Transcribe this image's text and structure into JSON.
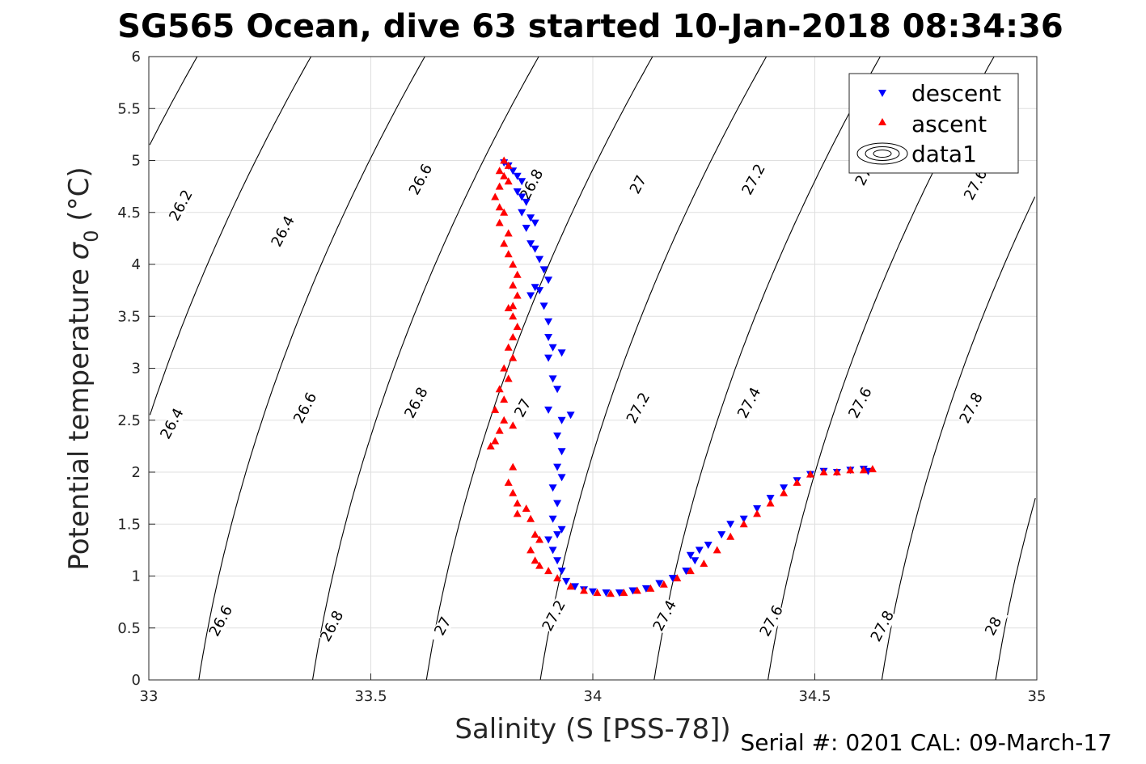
{
  "page": {
    "title": "SG565 Ocean, dive 63 started 10-Jan-2018 08:34:36",
    "footer": "Serial #: 0201  CAL: 09-March-17"
  },
  "colors": {
    "descent": "#0000ff",
    "ascent": "#ff0000",
    "contour": "#000000",
    "grid": "#dfdfdf"
  },
  "chart_data": {
    "type": "scatter",
    "xlabel": "Salinity (S [PSS-78])",
    "ylabel": "Potential temperature σ 0 (°C)",
    "ylabel_main": "Potential temperature ",
    "ylabel_sigma": "σ",
    "ylabel_sub": "0",
    "ylabel_unit": " (°C)",
    "xlim": [
      33,
      35
    ],
    "ylim": [
      0,
      6
    ],
    "xticks": [
      "33",
      "33.5",
      "34",
      "34.5",
      "35"
    ],
    "yticks": [
      "0",
      "0.5",
      "1",
      "1.5",
      "2",
      "2.5",
      "3",
      "3.5",
      "4",
      "4.5",
      "5",
      "5.5",
      "6"
    ],
    "grid": true,
    "legend": {
      "placement": "top-right",
      "entries": [
        "descent",
        "ascent",
        "data1"
      ]
    },
    "contours": {
      "levels": [
        26.2,
        26.4,
        26.6,
        26.8,
        27.0,
        27.2,
        27.4,
        27.6,
        27.8,
        28.0
      ],
      "labels": [
        {
          "text": "26.2",
          "s": 33.08,
          "t": 4.55
        },
        {
          "text": "26.4",
          "s": 33.31,
          "t": 4.3
        },
        {
          "text": "26.6",
          "s": 33.62,
          "t": 4.8
        },
        {
          "text": "26.8",
          "s": 33.87,
          "t": 4.75
        },
        {
          "text": "27",
          "s": 34.11,
          "t": 4.75
        },
        {
          "text": "27.2",
          "s": 34.37,
          "t": 4.8
        },
        {
          "text": "27.",
          "s": 34.62,
          "t": 4.85
        },
        {
          "text": "27.6",
          "s": 34.87,
          "t": 4.75
        },
        {
          "text": "26.4",
          "s": 33.06,
          "t": 2.45
        },
        {
          "text": "26.6",
          "s": 33.36,
          "t": 2.6
        },
        {
          "text": "26.8",
          "s": 33.61,
          "t": 2.65
        },
        {
          "text": "27",
          "s": 33.85,
          "t": 2.6
        },
        {
          "text": "27.2",
          "s": 34.11,
          "t": 2.6
        },
        {
          "text": "27.4",
          "s": 34.36,
          "t": 2.65
        },
        {
          "text": "27.6",
          "s": 34.61,
          "t": 2.65
        },
        {
          "text": "27.8",
          "s": 34.86,
          "t": 2.6
        },
        {
          "text": "26.6",
          "s": 33.17,
          "t": 0.55
        },
        {
          "text": "26.8",
          "s": 33.42,
          "t": 0.5
        },
        {
          "text": "27",
          "s": 33.67,
          "t": 0.5
        },
        {
          "text": "27.2",
          "s": 33.92,
          "t": 0.6
        },
        {
          "text": "27.4",
          "s": 34.17,
          "t": 0.6
        },
        {
          "text": "27.6",
          "s": 34.41,
          "t": 0.55
        },
        {
          "text": "27.8",
          "s": 34.66,
          "t": 0.5
        },
        {
          "text": "28",
          "s": 34.91,
          "t": 0.5
        }
      ]
    },
    "series": [
      {
        "name": "descent",
        "marker": "triangle-down",
        "points": [
          [
            33.8,
            4.98
          ],
          [
            33.81,
            4.95
          ],
          [
            33.82,
            4.9
          ],
          [
            33.83,
            4.85
          ],
          [
            33.84,
            4.8
          ],
          [
            33.83,
            4.7
          ],
          [
            33.84,
            4.65
          ],
          [
            33.85,
            4.6
          ],
          [
            33.84,
            4.5
          ],
          [
            33.86,
            4.45
          ],
          [
            33.87,
            4.4
          ],
          [
            33.85,
            4.35
          ],
          [
            33.86,
            4.2
          ],
          [
            33.87,
            4.15
          ],
          [
            33.88,
            4.05
          ],
          [
            33.89,
            3.95
          ],
          [
            33.9,
            3.85
          ],
          [
            33.87,
            3.78
          ],
          [
            33.88,
            3.75
          ],
          [
            33.86,
            3.7
          ],
          [
            33.89,
            3.6
          ],
          [
            33.9,
            3.45
          ],
          [
            33.9,
            3.3
          ],
          [
            33.91,
            3.2
          ],
          [
            33.9,
            3.1
          ],
          [
            33.93,
            3.15
          ],
          [
            33.91,
            2.9
          ],
          [
            33.92,
            2.8
          ],
          [
            33.9,
            2.6
          ],
          [
            33.93,
            2.5
          ],
          [
            33.95,
            2.55
          ],
          [
            33.92,
            2.35
          ],
          [
            33.93,
            2.2
          ],
          [
            33.92,
            2.05
          ],
          [
            33.93,
            1.95
          ],
          [
            33.91,
            1.85
          ],
          [
            33.92,
            1.7
          ],
          [
            33.91,
            1.55
          ],
          [
            33.93,
            1.45
          ],
          [
            33.92,
            1.4
          ],
          [
            33.9,
            1.35
          ],
          [
            33.91,
            1.25
          ],
          [
            33.92,
            1.15
          ],
          [
            33.93,
            1.05
          ],
          [
            33.94,
            0.95
          ],
          [
            33.96,
            0.9
          ],
          [
            33.98,
            0.87
          ],
          [
            34.0,
            0.85
          ],
          [
            34.03,
            0.84
          ],
          [
            34.06,
            0.84
          ],
          [
            34.09,
            0.86
          ],
          [
            34.12,
            0.88
          ],
          [
            34.15,
            0.93
          ],
          [
            34.18,
            0.98
          ],
          [
            34.21,
            1.05
          ],
          [
            34.23,
            1.15
          ],
          [
            34.22,
            1.2
          ],
          [
            34.24,
            1.25
          ],
          [
            34.26,
            1.3
          ],
          [
            34.29,
            1.4
          ],
          [
            34.31,
            1.5
          ],
          [
            34.34,
            1.55
          ],
          [
            34.37,
            1.65
          ],
          [
            34.4,
            1.75
          ],
          [
            34.43,
            1.85
          ],
          [
            34.46,
            1.92
          ],
          [
            34.49,
            1.98
          ],
          [
            34.52,
            2.01
          ],
          [
            34.55,
            2.0
          ],
          [
            34.58,
            2.02
          ],
          [
            34.61,
            2.03
          ],
          [
            34.62,
            2.01
          ]
        ]
      },
      {
        "name": "ascent",
        "marker": "triangle-up",
        "points": [
          [
            33.8,
            5.0
          ],
          [
            33.81,
            4.95
          ],
          [
            33.79,
            4.9
          ],
          [
            33.8,
            4.85
          ],
          [
            33.81,
            4.8
          ],
          [
            33.79,
            4.75
          ],
          [
            33.78,
            4.65
          ],
          [
            33.79,
            4.55
          ],
          [
            33.8,
            4.5
          ],
          [
            33.79,
            4.4
          ],
          [
            33.81,
            4.3
          ],
          [
            33.8,
            4.2
          ],
          [
            33.81,
            4.1
          ],
          [
            33.82,
            4.0
          ],
          [
            33.83,
            3.9
          ],
          [
            33.82,
            3.8
          ],
          [
            33.83,
            3.7
          ],
          [
            33.82,
            3.6
          ],
          [
            33.81,
            3.58
          ],
          [
            33.82,
            3.5
          ],
          [
            33.83,
            3.4
          ],
          [
            33.82,
            3.3
          ],
          [
            33.81,
            3.2
          ],
          [
            33.82,
            3.1
          ],
          [
            33.8,
            3.0
          ],
          [
            33.81,
            2.9
          ],
          [
            33.79,
            2.8
          ],
          [
            33.8,
            2.7
          ],
          [
            33.78,
            2.6
          ],
          [
            33.8,
            2.5
          ],
          [
            33.82,
            2.45
          ],
          [
            33.79,
            2.4
          ],
          [
            33.78,
            2.3
          ],
          [
            33.77,
            2.25
          ],
          [
            33.82,
            2.05
          ],
          [
            33.81,
            1.9
          ],
          [
            33.82,
            1.8
          ],
          [
            33.83,
            1.7
          ],
          [
            33.83,
            1.6
          ],
          [
            33.85,
            1.65
          ],
          [
            33.86,
            1.55
          ],
          [
            33.87,
            1.4
          ],
          [
            33.88,
            1.35
          ],
          [
            33.86,
            1.25
          ],
          [
            33.87,
            1.15
          ],
          [
            33.88,
            1.1
          ],
          [
            33.9,
            1.05
          ],
          [
            33.92,
            0.98
          ],
          [
            33.95,
            0.9
          ],
          [
            33.98,
            0.86
          ],
          [
            34.01,
            0.84
          ],
          [
            34.04,
            0.83
          ],
          [
            34.07,
            0.84
          ],
          [
            34.1,
            0.86
          ],
          [
            34.13,
            0.88
          ],
          [
            34.16,
            0.92
          ],
          [
            34.19,
            0.98
          ],
          [
            34.22,
            1.05
          ],
          [
            34.25,
            1.12
          ],
          [
            34.28,
            1.25
          ],
          [
            34.31,
            1.38
          ],
          [
            34.34,
            1.5
          ],
          [
            34.37,
            1.6
          ],
          [
            34.4,
            1.7
          ],
          [
            34.43,
            1.8
          ],
          [
            34.46,
            1.9
          ],
          [
            34.49,
            1.98
          ],
          [
            34.52,
            2.0
          ],
          [
            34.55,
            2.0
          ],
          [
            34.58,
            2.02
          ],
          [
            34.61,
            2.02
          ],
          [
            34.63,
            2.03
          ]
        ]
      }
    ]
  }
}
